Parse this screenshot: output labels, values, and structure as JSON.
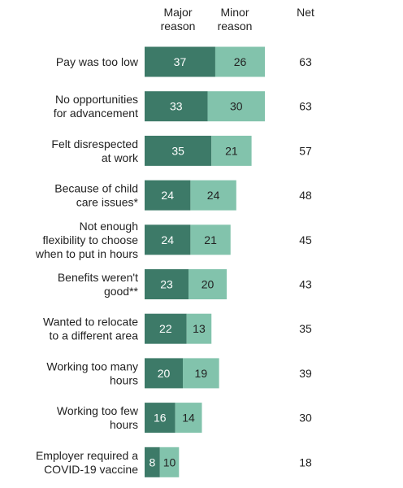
{
  "chart_data": {
    "type": "bar",
    "orientation": "horizontal",
    "stacked": true,
    "headers": {
      "major": [
        "Major",
        "reason"
      ],
      "minor": [
        "Minor",
        "reason"
      ],
      "net": "Net"
    },
    "categories": [
      [
        "Pay was too low"
      ],
      [
        "No opportunities",
        "for advancement"
      ],
      [
        "Felt disrespected",
        "at work"
      ],
      [
        "Because of child",
        "care issues*"
      ],
      [
        "Not enough",
        "flexibility to choose",
        "when to put in hours"
      ],
      [
        "Benefits weren't",
        "good**"
      ],
      [
        "Wanted to relocate",
        "to a different area"
      ],
      [
        "Working too many",
        "hours"
      ],
      [
        "Working too few",
        "hours"
      ],
      [
        "Employer required a",
        "COVID-19 vaccine"
      ]
    ],
    "series": [
      {
        "name": "Major reason",
        "values": [
          37,
          33,
          35,
          24,
          24,
          23,
          22,
          20,
          16,
          8
        ]
      },
      {
        "name": "Minor reason",
        "values": [
          26,
          30,
          21,
          24,
          21,
          20,
          13,
          19,
          14,
          10
        ]
      }
    ],
    "net": [
      63,
      63,
      57,
      48,
      45,
      43,
      35,
      39,
      30,
      18
    ],
    "colors": {
      "major": "#3d7a68",
      "minor": "#82c3ac"
    }
  }
}
